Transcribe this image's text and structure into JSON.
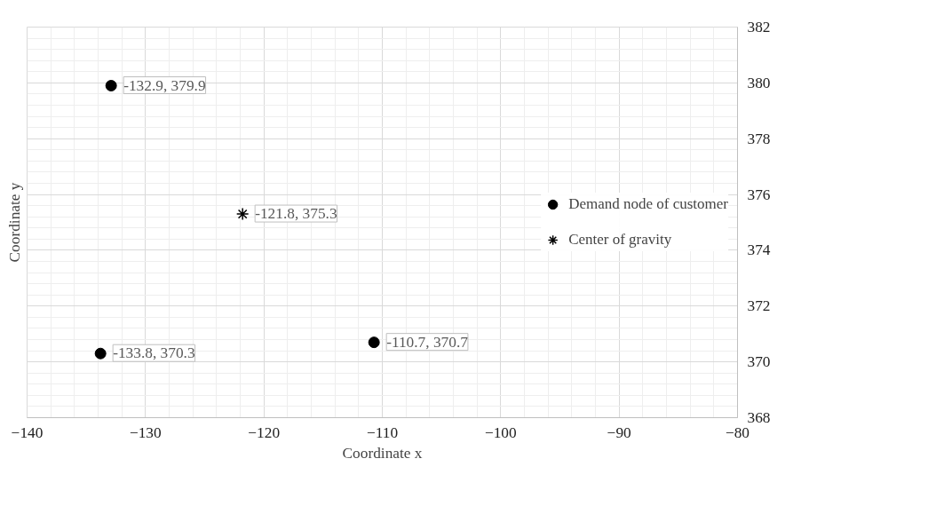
{
  "chart_data": {
    "type": "scatter",
    "xlabel": "Coordinate x",
    "ylabel": "Coordinate y",
    "series": [
      {
        "name": "Demand node of customer",
        "color": "#000000",
        "marker": "circle",
        "x": [
          -132.9,
          -133.8,
          -110.7
        ],
        "values": [
          379.9,
          370.3,
          370.7
        ],
        "value_labels": [
          "-132.9, 379.9",
          "-133.8, 370.3",
          "-110.7, 370.7"
        ]
      },
      {
        "name": "Center of gravity",
        "color": "#000000",
        "marker": "cross",
        "x": [
          -121.8
        ],
        "values": [
          375.3
        ],
        "value_labels": [
          "-121.8, 375.3"
        ]
      }
    ],
    "xlim": [
      -140,
      -80
    ],
    "ylim": [
      368,
      382
    ],
    "xticks": [
      -140,
      -130,
      -120,
      -110,
      -100,
      -90,
      -80
    ],
    "yticks": [
      368,
      370,
      372,
      374,
      376,
      378,
      380,
      382
    ],
    "grid": true,
    "legend": "right"
  }
}
